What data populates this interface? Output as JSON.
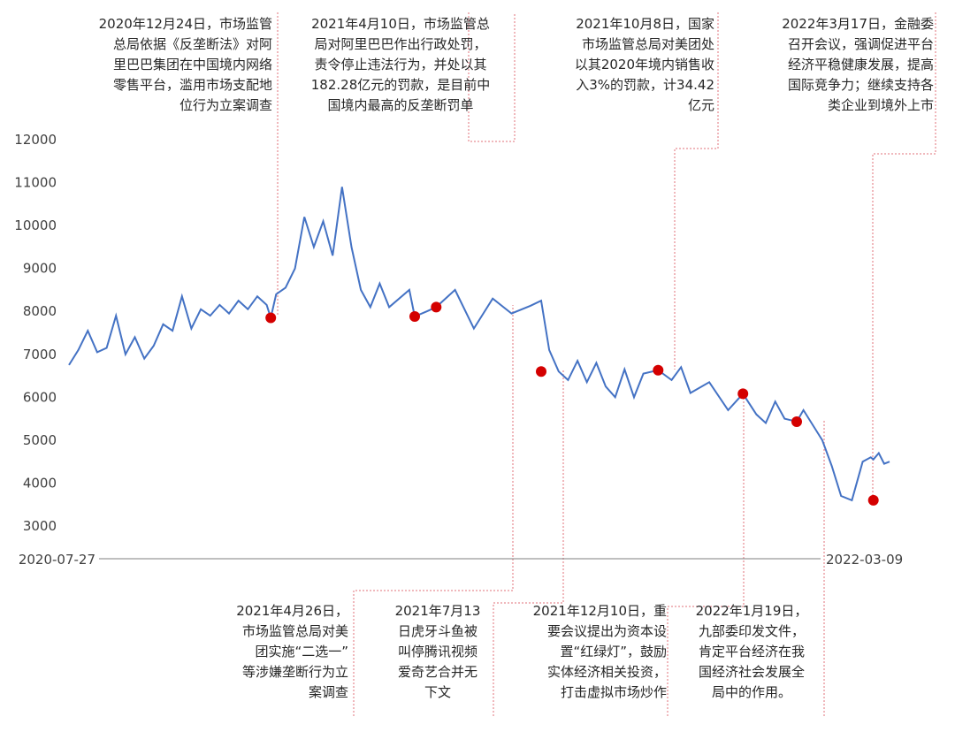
{
  "chart_data": {
    "type": "line",
    "x_start": "2020-07-27",
    "x_end": "2022-03-09",
    "ylim": [
      3000,
      12000
    ],
    "yticks": [
      3000,
      4000,
      5000,
      6000,
      7000,
      8000,
      9000,
      10000,
      11000,
      12000
    ],
    "grid": false,
    "series": [
      {
        "color": "#4472c4",
        "x": [
          "2020-07-27",
          "2020-08-03",
          "2020-08-10",
          "2020-08-17",
          "2020-08-24",
          "2020-08-31",
          "2020-09-07",
          "2020-09-14",
          "2020-09-21",
          "2020-09-28",
          "2020-10-05",
          "2020-10-12",
          "2020-10-19",
          "2020-10-26",
          "2020-11-02",
          "2020-11-09",
          "2020-11-16",
          "2020-11-23",
          "2020-11-30",
          "2020-12-07",
          "2020-12-14",
          "2020-12-21",
          "2020-12-24",
          "2020-12-28",
          "2021-01-04",
          "2021-01-11",
          "2021-01-18",
          "2021-01-25",
          "2021-02-01",
          "2021-02-08",
          "2021-02-15",
          "2021-02-22",
          "2021-03-01",
          "2021-03-08",
          "2021-03-15",
          "2021-03-22",
          "2021-04-06",
          "2021-04-10",
          "2021-04-19",
          "2021-04-26",
          "2021-05-10",
          "2021-05-24",
          "2021-06-07",
          "2021-06-21",
          "2021-07-05",
          "2021-07-13",
          "2021-07-19",
          "2021-07-26",
          "2021-08-02",
          "2021-08-09",
          "2021-08-16",
          "2021-08-23",
          "2021-08-30",
          "2021-09-06",
          "2021-09-13",
          "2021-09-20",
          "2021-09-27",
          "2021-10-08",
          "2021-10-18",
          "2021-10-25",
          "2021-11-01",
          "2021-11-15",
          "2021-11-29",
          "2021-12-10",
          "2021-12-20",
          "2021-12-27",
          "2022-01-03",
          "2022-01-10",
          "2022-01-19",
          "2022-01-24",
          "2022-02-07",
          "2022-02-14",
          "2022-02-21",
          "2022-03-01",
          "2022-03-09",
          "2022-03-15",
          "2022-03-17",
          "2022-03-21",
          "2022-03-25",
          "2022-03-29"
        ],
        "values": [
          6750,
          7100,
          7550,
          7050,
          7150,
          7900,
          7000,
          7400,
          6900,
          7200,
          7700,
          7550,
          8350,
          7600,
          8050,
          7900,
          8150,
          7950,
          8250,
          8050,
          8350,
          8150,
          7850,
          8400,
          8550,
          9000,
          10200,
          9500,
          10100,
          9300,
          10900,
          9500,
          8500,
          8100,
          8650,
          8100,
          8500,
          7880,
          8000,
          8100,
          8500,
          7600,
          8300,
          7950,
          8130,
          8250,
          7100,
          6600,
          6400,
          6850,
          6350,
          6800,
          6250,
          6000,
          6650,
          6000,
          6550,
          6630,
          6400,
          6700,
          6100,
          6350,
          5700,
          6080,
          5600,
          5400,
          5900,
          5500,
          5430,
          5700,
          5000,
          4400,
          3700,
          3600,
          4500,
          4600,
          4550,
          4700,
          4450,
          4500
        ]
      }
    ],
    "markers": [
      {
        "x": "2020-12-24",
        "y": 7850
      },
      {
        "x": "2021-04-10",
        "y": 7880
      },
      {
        "x": "2021-04-26",
        "y": 8100
      },
      {
        "x": "2021-07-13",
        "y": 6600
      },
      {
        "x": "2021-10-08",
        "y": 6630
      },
      {
        "x": "2021-12-10",
        "y": 6080
      },
      {
        "x": "2022-01-19",
        "y": 5430
      },
      {
        "x": "2022-03-17",
        "y": 3600
      }
    ]
  },
  "annotations_top": [
    {
      "lines": [
        "2020年12月24日，市场监管",
        "总局依据《反垄断法》对阿",
        "里巴巴集团在中国境内网络",
        "零售平台，滥用市场支配地",
        "位行为立案调查"
      ]
    },
    {
      "lines": [
        "2021年4月10日，市场监管总",
        "局对阿里巴巴作出行政处罚，",
        "责令停止违法行为，并处以其",
        "182.28亿元的罚款，是目前中",
        "国境内最高的反垄断罚单"
      ]
    },
    {
      "lines": [
        "2021年10月8日，国家",
        "市场监管总局对美团处",
        "以其2020年境内销售收",
        "入3%的罚款，计34.42",
        "亿元"
      ]
    },
    {
      "lines": [
        "2022年3月17日，金融委",
        "召开会议，强调促进平台",
        "经济平稳健康发展，提高",
        "国际竞争力；继续支持各",
        "类企业到境外上市"
      ]
    }
  ],
  "annotations_bottom": [
    {
      "lines": [
        "2021年4月26日，",
        "市场监管总局对美",
        "团实施“二选一”",
        "等涉嫌垄断行为立",
        "案调查"
      ]
    },
    {
      "lines": [
        "2021年7月13",
        "日虎牙斗鱼被",
        "叫停腾讯视频",
        "爱奇艺合并无",
        "下文"
      ]
    },
    {
      "lines": [
        "2021年12月10日，重",
        "要会议提出为资本设",
        "置“红绿灯”，鼓励",
        "实体经济相关投资，",
        "打击虚拟市场炒作"
      ]
    },
    {
      "lines": [
        "2022年1月19日，",
        "九部委印发文件，",
        "肯定平台经济在我",
        "国经济社会发展全",
        "局中的作用。"
      ]
    }
  ],
  "style": {
    "line_color": "#4472c4",
    "marker_color": "#d40000",
    "leader_color": "#e0707a",
    "axis_color": "#7f7f7f"
  }
}
